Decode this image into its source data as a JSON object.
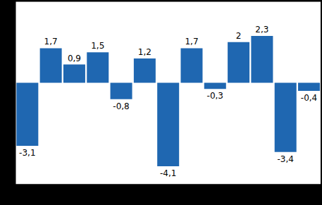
{
  "chart_data": {
    "type": "bar",
    "categories": [
      null,
      null,
      null,
      null,
      null,
      null,
      null,
      null,
      null,
      null,
      null,
      null,
      null
    ],
    "values": [
      -3.1,
      1.7,
      0.9,
      1.5,
      -0.8,
      1.2,
      -4.1,
      1.7,
      -0.3,
      2,
      2.3,
      -3.4,
      -0.4
    ],
    "value_labels": [
      "-3,1",
      "1,7",
      "0,9",
      "1,5",
      "-0,8",
      "1,2",
      "-4,1",
      "1,7",
      "-0,3",
      "2",
      "2,3",
      "-3,4",
      "-0,4"
    ],
    "color": "#1f67b1",
    "ylim": [
      -5,
      4
    ],
    "yticks": [
      -5,
      -4,
      -3,
      -2,
      -1,
      0,
      1,
      2,
      3,
      4
    ],
    "grid": true,
    "data_labels": true,
    "tick_labels": false
  }
}
